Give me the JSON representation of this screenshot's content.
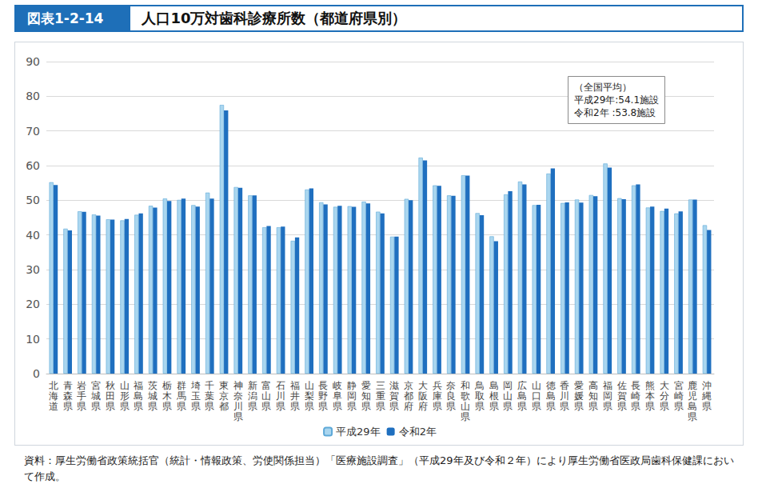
{
  "chart_data": {
    "type": "bar",
    "figure_label": "図表1-2-14",
    "title": "人口10万対歯科診療所数（都道府県別）",
    "source": "資料：厚生労働省政策統括官（統計・情報政策、労使関係担当）「医療施設調査」（平成29年及び令和２年）により厚生労働省医政局歯科保健課において作成。",
    "annotation": [
      "（全国平均）",
      "平成29年:54.1施設",
      "令和2年 :53.8施設"
    ],
    "categories": [
      "北海道",
      "青森県",
      "岩手県",
      "宮城県",
      "秋田県",
      "山形県",
      "福島県",
      "茨城県",
      "栃木県",
      "群馬県",
      "埼玉県",
      "千葉県",
      "東京都",
      "神奈川県",
      "新潟県",
      "富山県",
      "石川県",
      "福井県",
      "山梨県",
      "長野県",
      "岐阜県",
      "静岡県",
      "愛知県",
      "三重県",
      "滋賀県",
      "京都府",
      "大阪府",
      "兵庫県",
      "奈良県",
      "和歌山県",
      "鳥取県",
      "島根県",
      "岡山県",
      "広島県",
      "山口県",
      "徳島県",
      "香川県",
      "愛媛県",
      "高知県",
      "福岡県",
      "佐賀県",
      "長崎県",
      "熊本県",
      "大分県",
      "宮崎県",
      "鹿児島県",
      "沖縄県"
    ],
    "series": [
      {
        "name": "平成29年",
        "color": "#aad6ef",
        "values": [
          55.2,
          41.8,
          46.8,
          45.9,
          44.5,
          44.2,
          45.8,
          48.4,
          50.5,
          50.1,
          48.6,
          52.2,
          77.5,
          53.8,
          51.4,
          42.2,
          42.2,
          38.3,
          53.1,
          49.4,
          48.1,
          48.3,
          49.6,
          46.7,
          39.5,
          50.4,
          62.3,
          54.3,
          51.4,
          57.2,
          46.3,
          39.6,
          51.7,
          55.4,
          48.6,
          57.7,
          49.2,
          50.2,
          51.5,
          60.6,
          50.6,
          54.3,
          47.9,
          46.9,
          46.2,
          50.2,
          42.8
        ]
      },
      {
        "name": "令和2年",
        "color": "#1f6fbf",
        "values": [
          54.4,
          41.3,
          46.7,
          45.6,
          44.4,
          44.6,
          46.2,
          47.9,
          49.8,
          50.5,
          48.2,
          50.5,
          75.9,
          53.6,
          51.4,
          42.6,
          42.4,
          39.3,
          53.4,
          48.8,
          48.4,
          48.1,
          49.1,
          46.2,
          39.5,
          50.0,
          61.5,
          54.2,
          51.3,
          57.1,
          45.7,
          38.2,
          52.6,
          54.6,
          48.7,
          59.2,
          49.4,
          49.3,
          51.2,
          59.4,
          50.3,
          54.6,
          48.2,
          47.6,
          46.8,
          50.2,
          41.4
        ]
      }
    ],
    "ylim": [
      0,
      90
    ],
    "yticks": [
      0,
      10,
      20,
      30,
      40,
      50,
      60,
      70,
      80,
      90
    ],
    "grid": true,
    "legend": "bottom"
  }
}
